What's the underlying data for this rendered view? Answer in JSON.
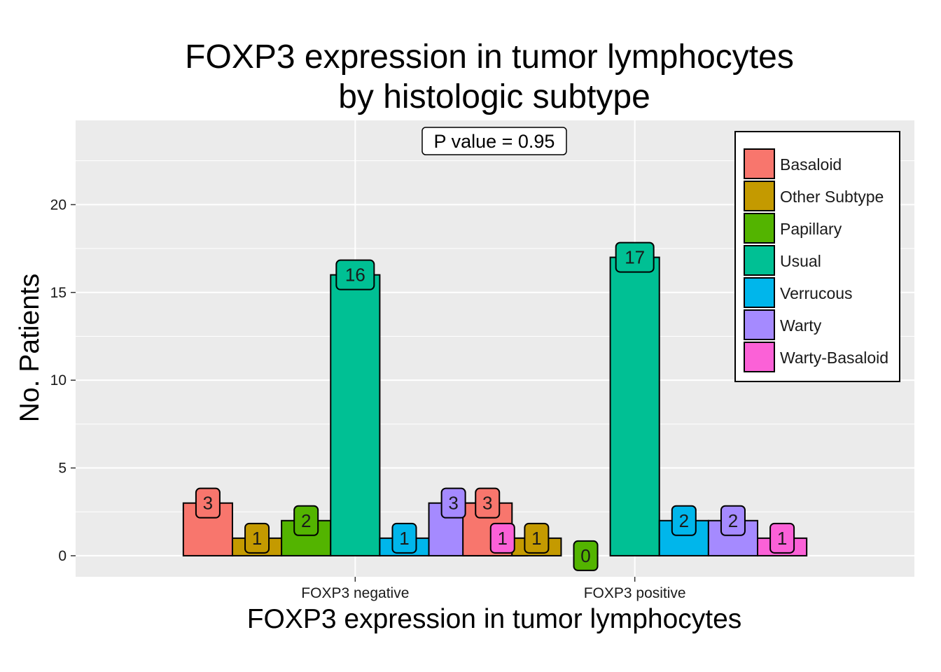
{
  "chart_data": {
    "type": "bar",
    "title": [
      "FOXP3 expression in tumor lymphocytes",
      "by histologic subtype"
    ],
    "xlabel": "FOXP3 expression in tumor lymphocytes",
    "ylabel": "No. Patients",
    "categories": [
      "FOXP3 negative",
      "FOXP3 positive"
    ],
    "ylim": [
      -1.2,
      24.8
    ],
    "yticks": [
      "0",
      "5",
      "10",
      "15",
      "20"
    ],
    "grid": true,
    "legend_position": "top-right",
    "annotation": "P value = 0.95",
    "series": [
      {
        "name": "Basaloid",
        "color": "#F8766D",
        "values": [
          3,
          3
        ],
        "labels": [
          "3",
          "3"
        ]
      },
      {
        "name": "Other Subtype",
        "color": "#C49A00",
        "values": [
          1,
          1
        ],
        "labels": [
          "1",
          "1"
        ]
      },
      {
        "name": "Papillary",
        "color": "#53B400",
        "values": [
          2,
          0
        ],
        "labels": [
          "2",
          "0"
        ]
      },
      {
        "name": "Usual",
        "color": "#00C094",
        "values": [
          16,
          17
        ],
        "labels": [
          "16",
          "17"
        ]
      },
      {
        "name": "Verrucous",
        "color": "#00B6EB",
        "values": [
          1,
          2
        ],
        "labels": [
          "1",
          "2"
        ]
      },
      {
        "name": "Warty",
        "color": "#A58AFF",
        "values": [
          3,
          2
        ],
        "labels": [
          "3",
          "2"
        ]
      },
      {
        "name": "Warty-Basaloid",
        "color": "#FB61D7",
        "values": [
          1,
          1
        ],
        "labels": [
          "1",
          "1"
        ]
      }
    ]
  }
}
